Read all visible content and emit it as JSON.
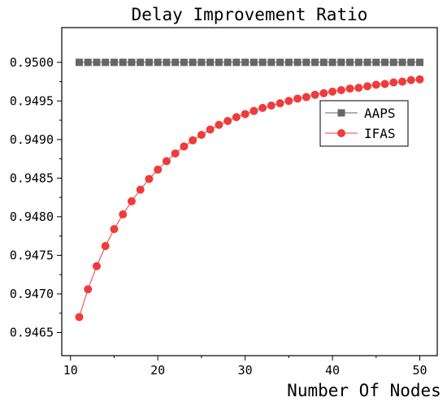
{
  "chart_data": {
    "type": "line",
    "title": "Delay Improvement Ratio",
    "xlabel": "Number Of Nodes",
    "ylabel": "",
    "xlim": [
      9,
      52
    ],
    "ylim": [
      0.9462,
      0.95045
    ],
    "xticks": [
      10,
      20,
      30,
      40,
      50
    ],
    "yticks": [
      0.9465,
      0.947,
      0.9475,
      0.948,
      0.9485,
      0.949,
      0.9495,
      0.95
    ],
    "ytick_labels": [
      "0.9465",
      "0.9470",
      "0.9475",
      "0.9480",
      "0.9485",
      "0.9490",
      "0.9495",
      "0.9500"
    ],
    "grid": false,
    "legend_position": "right",
    "x": [
      11,
      12,
      13,
      14,
      15,
      16,
      17,
      18,
      19,
      20,
      21,
      22,
      23,
      24,
      25,
      26,
      27,
      28,
      29,
      30,
      31,
      32,
      33,
      34,
      35,
      36,
      37,
      38,
      39,
      40,
      41,
      42,
      43,
      44,
      45,
      46,
      47,
      48,
      49,
      50
    ],
    "series": [
      {
        "name": "AAPS",
        "color": "#666666",
        "marker": "square",
        "values": [
          0.95,
          0.95,
          0.95,
          0.95,
          0.95,
          0.95,
          0.95,
          0.95,
          0.95,
          0.95,
          0.95,
          0.95,
          0.95,
          0.95,
          0.95,
          0.95,
          0.95,
          0.95,
          0.95,
          0.95,
          0.95,
          0.95,
          0.95,
          0.95,
          0.95,
          0.95,
          0.95,
          0.95,
          0.95,
          0.95,
          0.95,
          0.95,
          0.95,
          0.95,
          0.95,
          0.95,
          0.95,
          0.95,
          0.95,
          0.95
        ]
      },
      {
        "name": "IFAS",
        "color": "#ef3b3b",
        "marker": "circle",
        "values": [
          0.9467,
          0.94706,
          0.94736,
          0.94762,
          0.94784,
          0.94803,
          0.9482,
          0.94835,
          0.94849,
          0.94861,
          0.94872,
          0.94882,
          0.94891,
          0.94899,
          0.94906,
          0.94913,
          0.94919,
          0.94924,
          0.94929,
          0.94933,
          0.94937,
          0.94941,
          0.94944,
          0.94947,
          0.9495,
          0.94953,
          0.94955,
          0.94958,
          0.9496,
          0.94962,
          0.94964,
          0.94966,
          0.94967,
          0.94969,
          0.94971,
          0.94972,
          0.94974,
          0.94975,
          0.94977,
          0.94978
        ]
      }
    ]
  }
}
